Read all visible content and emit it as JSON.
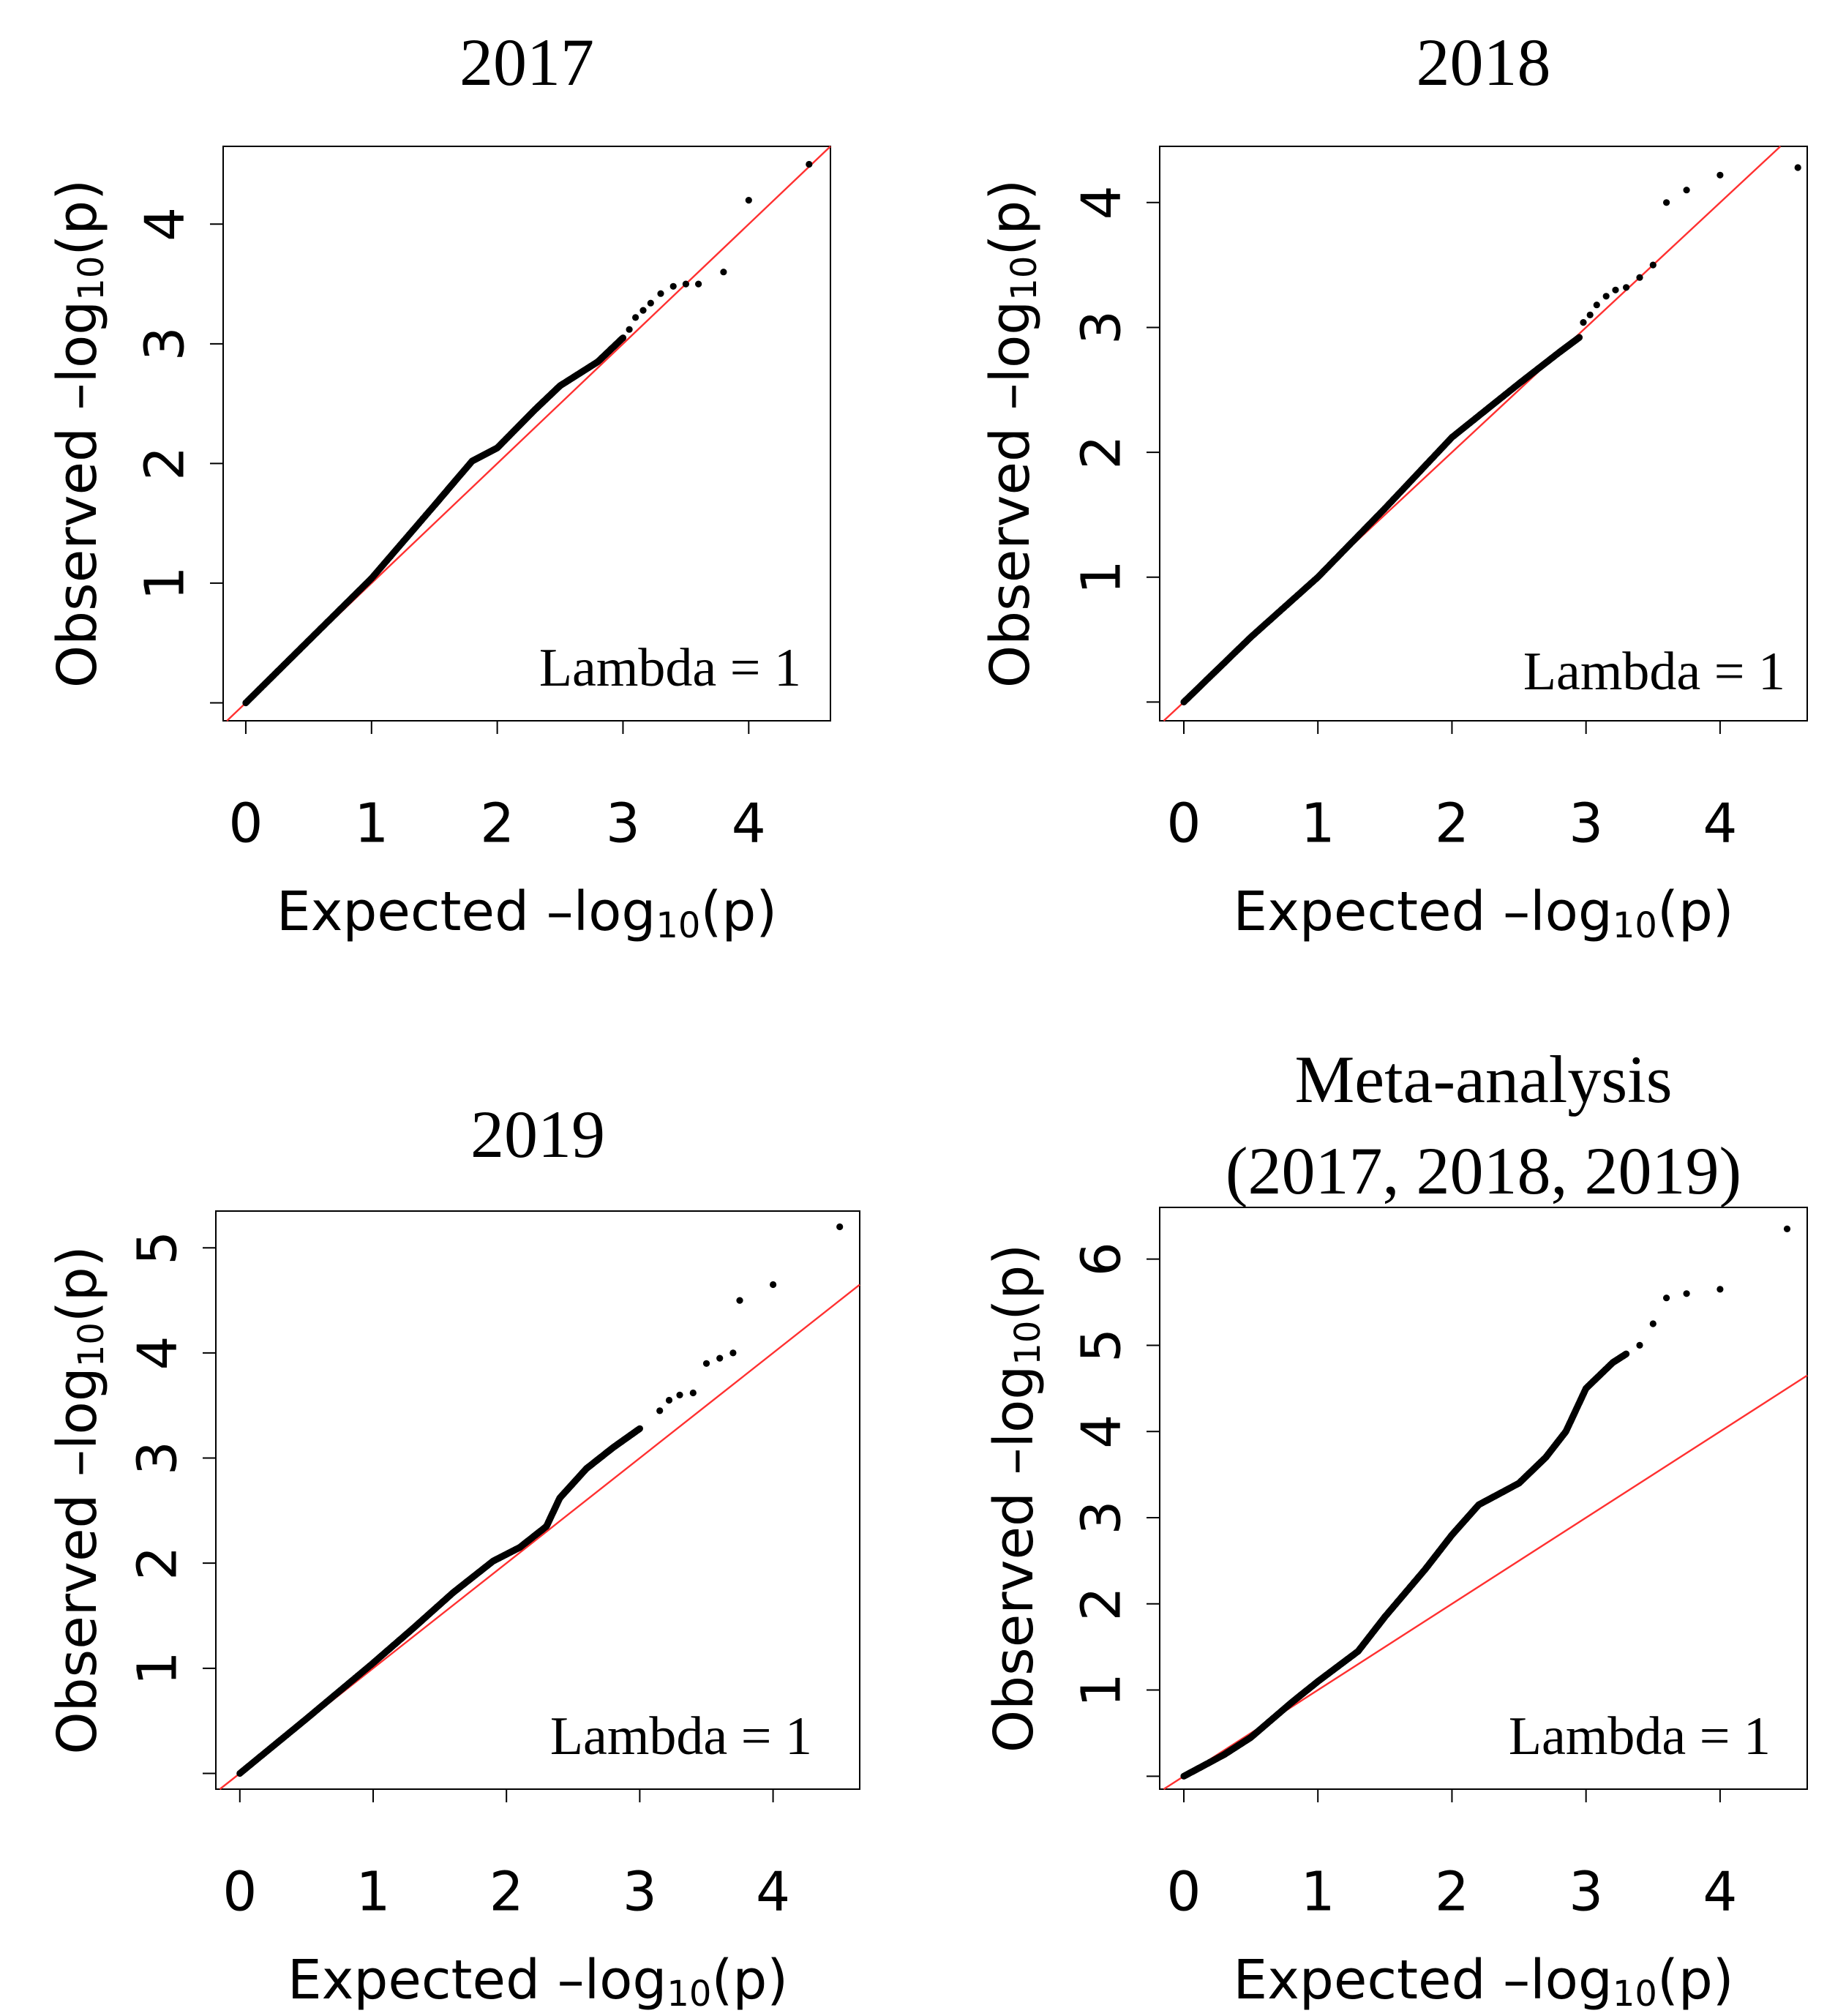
{
  "chart_data": [
    {
      "type": "scatter",
      "title": "2017",
      "xlabel": {
        "prefix": "Expected –log",
        "subscript": "10",
        "suffix": "(p)"
      },
      "ylabel": {
        "prefix": "Observed –log",
        "subscript": "10",
        "suffix": "(p)"
      },
      "xlim": [
        -0.18,
        4.65
      ],
      "ylim": [
        -0.15,
        4.65
      ],
      "xticks": [
        0,
        1,
        2,
        3,
        4
      ],
      "xtick_labels": [
        "0",
        "1",
        "2",
        "3",
        "4"
      ],
      "yticks": [
        0,
        1,
        2,
        3,
        4
      ],
      "ytick_labels": [
        "",
        "1",
        "2",
        "3",
        "4"
      ],
      "reference_line": {
        "slope": 1,
        "intercept": 0,
        "color": "#ff3030"
      },
      "annotation": "Lambda = 1",
      "curve": [
        [
          0,
          0
        ],
        [
          0.5,
          0.52
        ],
        [
          1.0,
          1.04
        ],
        [
          1.5,
          1.65
        ],
        [
          1.8,
          2.02
        ],
        [
          2.0,
          2.13
        ],
        [
          2.3,
          2.45
        ],
        [
          2.5,
          2.65
        ],
        [
          2.8,
          2.85
        ],
        [
          3.0,
          3.05
        ]
      ],
      "tail": [
        [
          3.05,
          3.12
        ],
        [
          3.1,
          3.22
        ],
        [
          3.16,
          3.28
        ],
        [
          3.22,
          3.34
        ],
        [
          3.3,
          3.42
        ],
        [
          3.4,
          3.48
        ],
        [
          3.5,
          3.5
        ],
        [
          3.6,
          3.5
        ],
        [
          3.8,
          3.6
        ],
        [
          4.0,
          4.2
        ],
        [
          4.48,
          4.5
        ]
      ]
    },
    {
      "type": "scatter",
      "title": "2018",
      "xlabel": {
        "prefix": "Expected –log",
        "subscript": "10",
        "suffix": "(p)"
      },
      "ylabel": {
        "prefix": "Observed –log",
        "subscript": "10",
        "suffix": "(p)"
      },
      "xlim": [
        -0.18,
        4.65
      ],
      "ylim": [
        -0.15,
        4.45
      ],
      "xticks": [
        0,
        1,
        2,
        3,
        4
      ],
      "xtick_labels": [
        "0",
        "1",
        "2",
        "3",
        "4"
      ],
      "yticks": [
        0,
        1,
        2,
        3,
        4
      ],
      "ytick_labels": [
        "",
        "1",
        "2",
        "3",
        "4"
      ],
      "reference_line": {
        "slope": 1,
        "intercept": 0,
        "color": "#ff3030"
      },
      "annotation": "Lambda = 1",
      "curve": [
        [
          0,
          0
        ],
        [
          0.5,
          0.52
        ],
        [
          1.0,
          1.0
        ],
        [
          1.5,
          1.55
        ],
        [
          2.0,
          2.12
        ],
        [
          2.5,
          2.55
        ],
        [
          2.8,
          2.8
        ],
        [
          2.95,
          2.92
        ]
      ],
      "tail": [
        [
          2.98,
          3.04
        ],
        [
          3.03,
          3.1
        ],
        [
          3.08,
          3.18
        ],
        [
          3.15,
          3.25
        ],
        [
          3.22,
          3.3
        ],
        [
          3.3,
          3.32
        ],
        [
          3.4,
          3.4
        ],
        [
          3.5,
          3.5
        ],
        [
          3.6,
          4.0
        ],
        [
          3.75,
          4.1
        ],
        [
          4.0,
          4.22
        ],
        [
          4.58,
          4.28
        ]
      ]
    },
    {
      "type": "scatter",
      "title": "2019",
      "xlabel": {
        "prefix": "Expected –log",
        "subscript": "10",
        "suffix": "(p)"
      },
      "ylabel": {
        "prefix": "Observed –log",
        "subscript": "10",
        "suffix": "(p)"
      },
      "xlim": [
        -0.18,
        4.65
      ],
      "ylim": [
        -0.15,
        5.35
      ],
      "xticks": [
        0,
        1,
        2,
        3,
        4
      ],
      "xtick_labels": [
        "0",
        "1",
        "2",
        "3",
        "4"
      ],
      "yticks": [
        0,
        1,
        2,
        3,
        4,
        5
      ],
      "ytick_labels": [
        "",
        "1",
        "2",
        "3",
        "4",
        "5"
      ],
      "reference_line": {
        "slope": 1,
        "intercept": 0,
        "color": "#ff3030"
      },
      "annotation": "Lambda = 1",
      "curve": [
        [
          0,
          0
        ],
        [
          0.5,
          0.52
        ],
        [
          1.0,
          1.05
        ],
        [
          1.3,
          1.38
        ],
        [
          1.6,
          1.72
        ],
        [
          1.9,
          2.02
        ],
        [
          2.1,
          2.15
        ],
        [
          2.3,
          2.35
        ],
        [
          2.4,
          2.62
        ],
        [
          2.6,
          2.9
        ],
        [
          2.8,
          3.1
        ],
        [
          3.0,
          3.28
        ]
      ],
      "tail": [
        [
          3.15,
          3.45
        ],
        [
          3.22,
          3.55
        ],
        [
          3.3,
          3.6
        ],
        [
          3.4,
          3.62
        ],
        [
          3.5,
          3.9
        ],
        [
          3.6,
          3.95
        ],
        [
          3.7,
          4.0
        ],
        [
          3.75,
          4.5
        ],
        [
          4.0,
          4.65
        ],
        [
          4.5,
          5.2
        ]
      ]
    },
    {
      "type": "scatter",
      "title": [
        "Meta-analysis",
        "(2017, 2018, 2019)"
      ],
      "xlabel": {
        "prefix": "Expected –log",
        "subscript": "10",
        "suffix": "(p)"
      },
      "ylabel": {
        "prefix": "Observed –log",
        "subscript": "10",
        "suffix": "(p)"
      },
      "xlim": [
        -0.18,
        4.65
      ],
      "ylim": [
        -0.15,
        6.6
      ],
      "xticks": [
        0,
        1,
        2,
        3,
        4
      ],
      "xtick_labels": [
        "0",
        "1",
        "2",
        "3",
        "4"
      ],
      "yticks": [
        0,
        1,
        2,
        3,
        4,
        5,
        6
      ],
      "ytick_labels": [
        "",
        "1",
        "2",
        "3",
        "4",
        "5",
        "6"
      ],
      "reference_line": {
        "slope": 1,
        "intercept": 0,
        "color": "#ff3030"
      },
      "annotation": "Lambda = 1",
      "curve": [
        [
          0,
          0
        ],
        [
          0.3,
          0.25
        ],
        [
          0.5,
          0.45
        ],
        [
          0.8,
          0.85
        ],
        [
          1.0,
          1.1
        ],
        [
          1.3,
          1.45
        ],
        [
          1.5,
          1.85
        ],
        [
          1.8,
          2.4
        ],
        [
          2.0,
          2.8
        ],
        [
          2.2,
          3.15
        ],
        [
          2.5,
          3.4
        ],
        [
          2.7,
          3.7
        ],
        [
          2.85,
          4.0
        ],
        [
          3.0,
          4.5
        ],
        [
          3.2,
          4.8
        ],
        [
          3.3,
          4.9
        ]
      ],
      "tail": [
        [
          3.4,
          5.0
        ],
        [
          3.5,
          5.25
        ],
        [
          3.6,
          5.55
        ],
        [
          3.75,
          5.6
        ],
        [
          4.0,
          5.65
        ],
        [
          4.5,
          6.35
        ]
      ]
    }
  ]
}
